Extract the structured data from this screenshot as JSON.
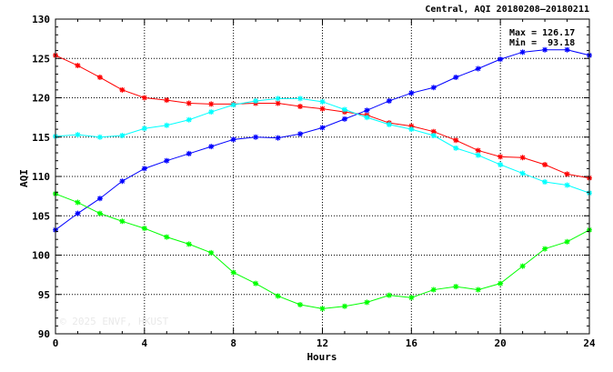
{
  "chart_data": {
    "type": "line",
    "title": "Central, AQI 20180208–20180211",
    "xlabel": "Hours",
    "ylabel": "AQI",
    "xlim": [
      0,
      24
    ],
    "ylim": [
      90,
      130
    ],
    "xticks": [
      0,
      4,
      8,
      12,
      16,
      20,
      24
    ],
    "yticks": [
      90,
      95,
      100,
      105,
      110,
      115,
      120,
      125,
      130
    ],
    "xtick_labels": [
      "0",
      "4",
      "8",
      "12",
      "16",
      "20",
      "24"
    ],
    "ytick_labels": [
      "90",
      "95",
      "100",
      "105",
      "110",
      "115",
      "120",
      "125",
      "130"
    ],
    "grid": true,
    "annotations": [
      "Max = 126.17",
      "Min =  93.18"
    ],
    "watermark": "© 2025  ENVF, HKUST",
    "x": [
      0,
      1,
      2,
      3,
      4,
      5,
      6,
      7,
      8,
      9,
      10,
      11,
      12,
      13,
      14,
      15,
      16,
      17,
      18,
      19,
      20,
      21,
      22,
      23,
      24
    ],
    "series": [
      {
        "color": "#ff0000",
        "values": [
          125.4,
          124.1,
          122.6,
          121.0,
          120.0,
          119.7,
          119.3,
          119.2,
          119.2,
          119.3,
          119.3,
          118.9,
          118.6,
          118.2,
          117.8,
          116.8,
          116.4,
          115.7,
          114.6,
          113.3,
          112.5,
          112.4,
          111.5,
          110.3,
          109.8
        ]
      },
      {
        "color": "#0000ff",
        "values": [
          103.2,
          105.3,
          107.2,
          109.4,
          111.0,
          112.0,
          112.9,
          113.8,
          114.7,
          115.0,
          114.9,
          115.4,
          116.2,
          117.3,
          118.4,
          119.6,
          120.6,
          121.3,
          122.6,
          123.7,
          124.9,
          125.8,
          126.1,
          126.1,
          125.4
        ]
      },
      {
        "color": "#00ffff",
        "values": [
          115.1,
          115.3,
          115.0,
          115.2,
          116.1,
          116.5,
          117.2,
          118.2,
          119.1,
          119.6,
          119.9,
          119.9,
          119.5,
          118.5,
          117.5,
          116.6,
          116.0,
          115.2,
          113.6,
          112.7,
          111.5,
          110.4,
          109.3,
          108.9,
          107.9
        ]
      },
      {
        "color": "#00ff00",
        "values": [
          107.8,
          106.7,
          105.3,
          104.3,
          103.4,
          102.3,
          101.4,
          100.3,
          97.8,
          96.4,
          94.8,
          93.7,
          93.2,
          93.5,
          94.0,
          94.9,
          94.6,
          95.6,
          96.0,
          95.6,
          96.4,
          98.6,
          100.8,
          101.7,
          103.2
        ]
      }
    ]
  }
}
